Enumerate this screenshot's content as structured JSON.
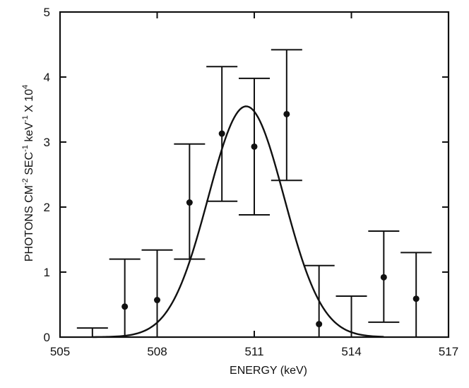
{
  "chart_data": {
    "type": "scatter",
    "xlabel": "ENERGY (keV)",
    "ylabel_main": "PHOTONS CM",
    "ylabel_exp1": "-2",
    "ylabel_mid": " SEC",
    "ylabel_exp2": "-1",
    "ylabel_mid2": " keV",
    "ylabel_exp3": "-1",
    "ylabel_mid3": " X 10",
    "ylabel_exp4": "4",
    "xlim": [
      505,
      517
    ],
    "ylim": [
      0,
      5
    ],
    "xticks": [
      505,
      508,
      511,
      514,
      517
    ],
    "xtick_labels": [
      "505",
      "508",
      "511",
      "514",
      "517"
    ],
    "yticks": [
      0,
      1,
      2,
      3,
      4,
      5
    ],
    "ytick_labels": [
      "0",
      "1",
      "2",
      "3",
      "4",
      "5"
    ],
    "points": [
      {
        "x": 506.0,
        "y": null,
        "lo": 0.0,
        "hi": 0.14
      },
      {
        "x": 507.0,
        "y": 0.47,
        "lo": 0.0,
        "hi": 1.2
      },
      {
        "x": 508.0,
        "y": 0.57,
        "lo": 0.0,
        "hi": 1.34
      },
      {
        "x": 509.0,
        "y": 2.07,
        "lo": 1.2,
        "hi": 2.97
      },
      {
        "x": 510.0,
        "y": 3.13,
        "lo": 2.09,
        "hi": 4.16
      },
      {
        "x": 511.0,
        "y": 2.93,
        "lo": 1.88,
        "hi": 3.98
      },
      {
        "x": 512.0,
        "y": 3.43,
        "lo": 2.41,
        "hi": 4.42
      },
      {
        "x": 513.0,
        "y": 0.2,
        "lo": 0.0,
        "hi": 1.1
      },
      {
        "x": 514.0,
        "y": null,
        "lo": 0.0,
        "hi": 0.63
      },
      {
        "x": 515.0,
        "y": 0.92,
        "lo": 0.23,
        "hi": 1.63
      },
      {
        "x": 516.0,
        "y": 0.59,
        "lo": 0.0,
        "hi": 1.3
      }
    ],
    "fit": {
      "type": "gaussian",
      "amplitude": 3.55,
      "center": 510.75,
      "sigma": 1.17,
      "x_range": [
        506.0,
        515.0
      ]
    }
  }
}
